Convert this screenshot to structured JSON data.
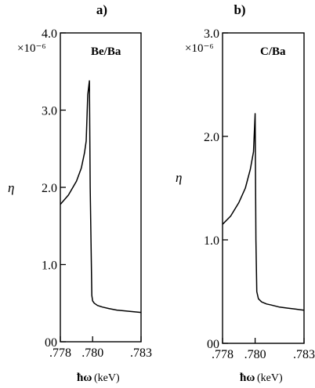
{
  "chart_data": [
    {
      "type": "line",
      "panel_label": "a)",
      "annotation": "Be/Ba",
      "ylabel": "η",
      "y_scale_label": "×10⁻⁶",
      "xlabel_symbol": "ħω",
      "xlabel_unit": "(keV)",
      "xlim": [
        0.778,
        0.783
      ],
      "ylim": [
        0,
        4.0
      ],
      "x_ticks": [
        0.778,
        0.78,
        0.783
      ],
      "x_tick_labels": [
        ".778",
        ".780",
        ".783"
      ],
      "y_ticks": [
        0,
        1.0,
        2.0,
        3.0,
        4.0
      ],
      "y_tick_labels": [
        "00",
        "1.0",
        "2.0",
        "3.0",
        "4.0"
      ],
      "series": [
        {
          "x": [
            0.778,
            0.7785,
            0.779,
            0.7793,
            0.7795,
            0.7796,
            0.7797,
            0.7798,
            0.77985,
            0.77995,
            0.78,
            0.7801,
            0.7803,
            0.7806,
            0.781,
            0.7815,
            0.782,
            0.7825,
            0.783
          ],
          "y": [
            1.78,
            1.9,
            2.08,
            2.25,
            2.45,
            2.6,
            3.2,
            3.38,
            2.0,
            0.6,
            0.53,
            0.5,
            0.47,
            0.45,
            0.43,
            0.41,
            0.4,
            0.39,
            0.38
          ]
        }
      ]
    },
    {
      "type": "line",
      "panel_label": "b)",
      "annotation": "C/Ba",
      "ylabel": "η",
      "y_scale_label": "×10⁻⁶",
      "xlabel_symbol": "ħω",
      "xlabel_unit": "(keV)",
      "xlim": [
        0.778,
        0.783
      ],
      "ylim": [
        0,
        3.0
      ],
      "x_ticks": [
        0.778,
        0.78,
        0.783
      ],
      "x_tick_labels": [
        ".778",
        ".780",
        ".783"
      ],
      "y_ticks": [
        0,
        1.0,
        2.0,
        3.0
      ],
      "y_tick_labels": [
        "00",
        "1.0",
        "2.0",
        "3.0"
      ],
      "series": [
        {
          "x": [
            0.778,
            0.7785,
            0.779,
            0.7794,
            0.7797,
            0.7799,
            0.78,
            0.78005,
            0.7801,
            0.7802,
            0.7804,
            0.7807,
            0.781,
            0.7815,
            0.782,
            0.7825,
            0.783
          ],
          "y": [
            1.15,
            1.23,
            1.36,
            1.5,
            1.68,
            1.85,
            2.22,
            1.0,
            0.5,
            0.43,
            0.4,
            0.38,
            0.37,
            0.35,
            0.34,
            0.33,
            0.32
          ]
        }
      ]
    }
  ]
}
